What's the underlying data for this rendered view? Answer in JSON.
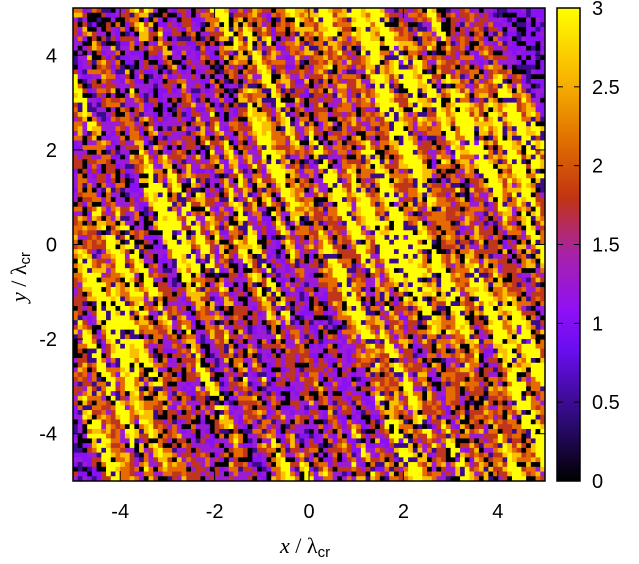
{
  "chart_data": {
    "type": "heatmap",
    "title": "",
    "xlabel": {
      "var": "x",
      "slash": "/",
      "base": "λ",
      "sub": "cr"
    },
    "ylabel": {
      "var": "y",
      "slash": "/",
      "base": "λ",
      "sub": "cr"
    },
    "xlim": [
      -5,
      5
    ],
    "ylim": [
      -5,
      5
    ],
    "x_ticks": [
      -4,
      -2,
      0,
      2,
      4
    ],
    "y_ticks": [
      -4,
      -2,
      0,
      2,
      4
    ],
    "x_tick_labels": [
      "-4",
      "-2",
      "0",
      "2",
      "4"
    ],
    "y_tick_labels": [
      "-4",
      "-2",
      "0",
      "2",
      "4"
    ],
    "colorbar": {
      "range": [
        0,
        3
      ],
      "ticks": [
        0,
        0.5,
        1,
        1.5,
        2,
        2.5,
        3
      ],
      "tick_labels": [
        "0",
        "0.5",
        "1",
        "1.5",
        "2",
        "2.5",
        "3"
      ],
      "colormap": [
        "#000000",
        "#3a0b8c",
        "#8a10f5",
        "#9a1cd6",
        "#c0361c",
        "#e66a00",
        "#fac000",
        "#ffff00"
      ]
    },
    "grid_resolution": [
      100,
      100
    ],
    "pattern": "diagonal streaks of high values running from upper-left to lower-right across a background of low-to-medium values"
  }
}
